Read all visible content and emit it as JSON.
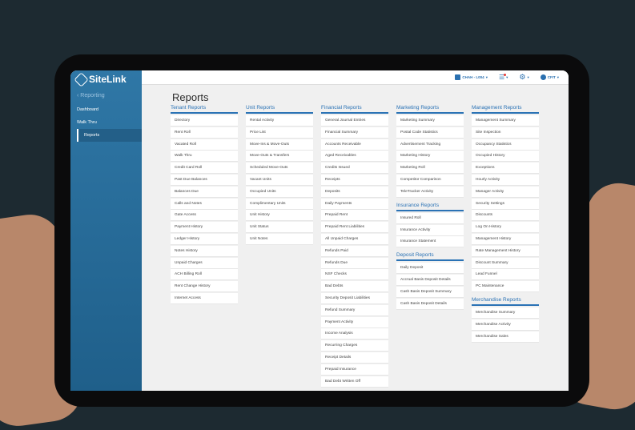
{
  "sidebar": {
    "logo": "SiteLink",
    "back": "Reporting",
    "items": [
      {
        "label": "Dashboard"
      },
      {
        "label": "Walk Thru"
      },
      {
        "label": "Reports",
        "active": true
      }
    ]
  },
  "topbar": {
    "location": "CHAH - L004",
    "user": "CFIT"
  },
  "page_title": "Reports",
  "columns": [
    [
      {
        "title": "Tenant Reports",
        "items": [
          "Directory",
          "Rent Roll",
          "Vacated Roll",
          "Walk Thru",
          "Credit Card Roll",
          "Past Due Balances",
          "Balances Due",
          "Calls and Notes",
          "Gate Access",
          "Payment History",
          "Ledger History",
          "Notes History",
          "Unpaid Charges",
          "ACH Billing Roll",
          "Rent Change History",
          "Internet Access"
        ]
      }
    ],
    [
      {
        "title": "Unit Reports",
        "items": [
          "Rental Activity",
          "Price List",
          "Move-Ins & Move-Outs",
          "Move-Outs & Transfers",
          "Scheduled Move-Outs",
          "Vacant Units",
          "Occupied Units",
          "Complimentary Units",
          "Unit History",
          "Unit Status",
          "Unit Notes"
        ]
      }
    ],
    [
      {
        "title": "Financial Reports",
        "items": [
          "General Journal Entries",
          "Financial Summary",
          "Accounts Receivable",
          "Aged Receivables",
          "Credits Issued",
          "Receipts",
          "Deposits",
          "Daily Payments",
          "Prepaid Rent",
          "Prepaid Rent Liabilities",
          "All Unpaid Charges",
          "Refunds Paid",
          "Refunds Due",
          "NSF Checks",
          "Bad Debts",
          "Security Deposit Liabilities",
          "Refund Summary",
          "Payment Activity",
          "Income Analysis",
          "Recurring Charges",
          "Receipt Details",
          "Prepaid Insurance",
          "Bad Debt Written Off"
        ]
      }
    ],
    [
      {
        "title": "Marketing Reports",
        "items": [
          "Marketing Summary",
          "Postal Code Statistics",
          "Advertisement Tracking",
          "Marketing History",
          "Marketing Roll",
          "Competitor Comparison",
          "TeleTracker Activity"
        ]
      },
      {
        "title": "Insurance Reports",
        "items": [
          "Insured Roll",
          "Insurance Activity",
          "Insurance Statement"
        ]
      },
      {
        "title": "Deposit Reports",
        "items": [
          "Daily Deposit",
          "Accrual Basis Deposit Details",
          "Cash Basis Deposit Summary",
          "Cash Basis Deposit Details"
        ]
      }
    ],
    [
      {
        "title": "Management Reports",
        "items": [
          "Management Summary",
          "Site Inspection",
          "Occupancy Statistics",
          "Occupied History",
          "Exceptions",
          "Hourly Activity",
          "Manager Activity",
          "Security Settings",
          "Discounts",
          "Log On History",
          "Management History",
          "Rate Management History",
          "Discount Summary",
          "Lead Funnel",
          "PC Maintenance"
        ]
      },
      {
        "title": "Merchandise Reports",
        "items": [
          "Merchandise Summary",
          "Merchandise Activity",
          "Merchandise Sales"
        ]
      }
    ]
  ],
  "colors": {
    "sidebar": "#2f77a6",
    "accent": "#2a72b5",
    "notification": "#e53935"
  }
}
